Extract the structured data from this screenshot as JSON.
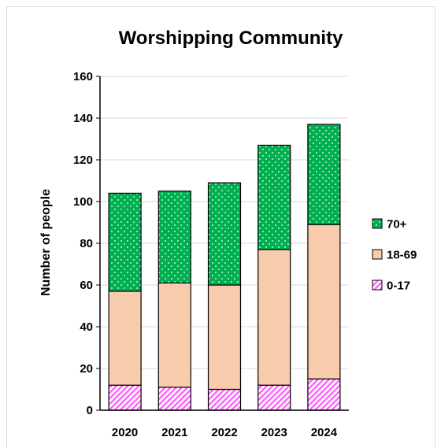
{
  "chart_data": {
    "type": "bar",
    "stacked": true,
    "title": "Worshipping Community",
    "xlabel": "",
    "ylabel": "Number of people",
    "ylim": [
      0,
      160
    ],
    "ytick_step": 20,
    "yticks": [
      "0",
      "20",
      "40",
      "60",
      "80",
      "100",
      "120",
      "140",
      "160"
    ],
    "grid": true,
    "legend_position": "right",
    "categories": [
      "2020",
      "2021",
      "2022",
      "2023",
      "2024"
    ],
    "series": [
      {
        "name": "0-17",
        "values": [
          12,
          11,
          10,
          12,
          15
        ],
        "color": "#ff66ff",
        "pattern": "diagonal-hatch"
      },
      {
        "name": "18-69",
        "values": [
          45,
          50,
          50,
          65,
          74
        ],
        "color": "#f8cbad",
        "pattern": "solid"
      },
      {
        "name": "70+",
        "values": [
          47,
          44,
          49,
          50,
          48
        ],
        "color": "#00b050",
        "pattern": "dots"
      }
    ],
    "legend_order": [
      "70+",
      "18-69",
      "0-17"
    ]
  }
}
